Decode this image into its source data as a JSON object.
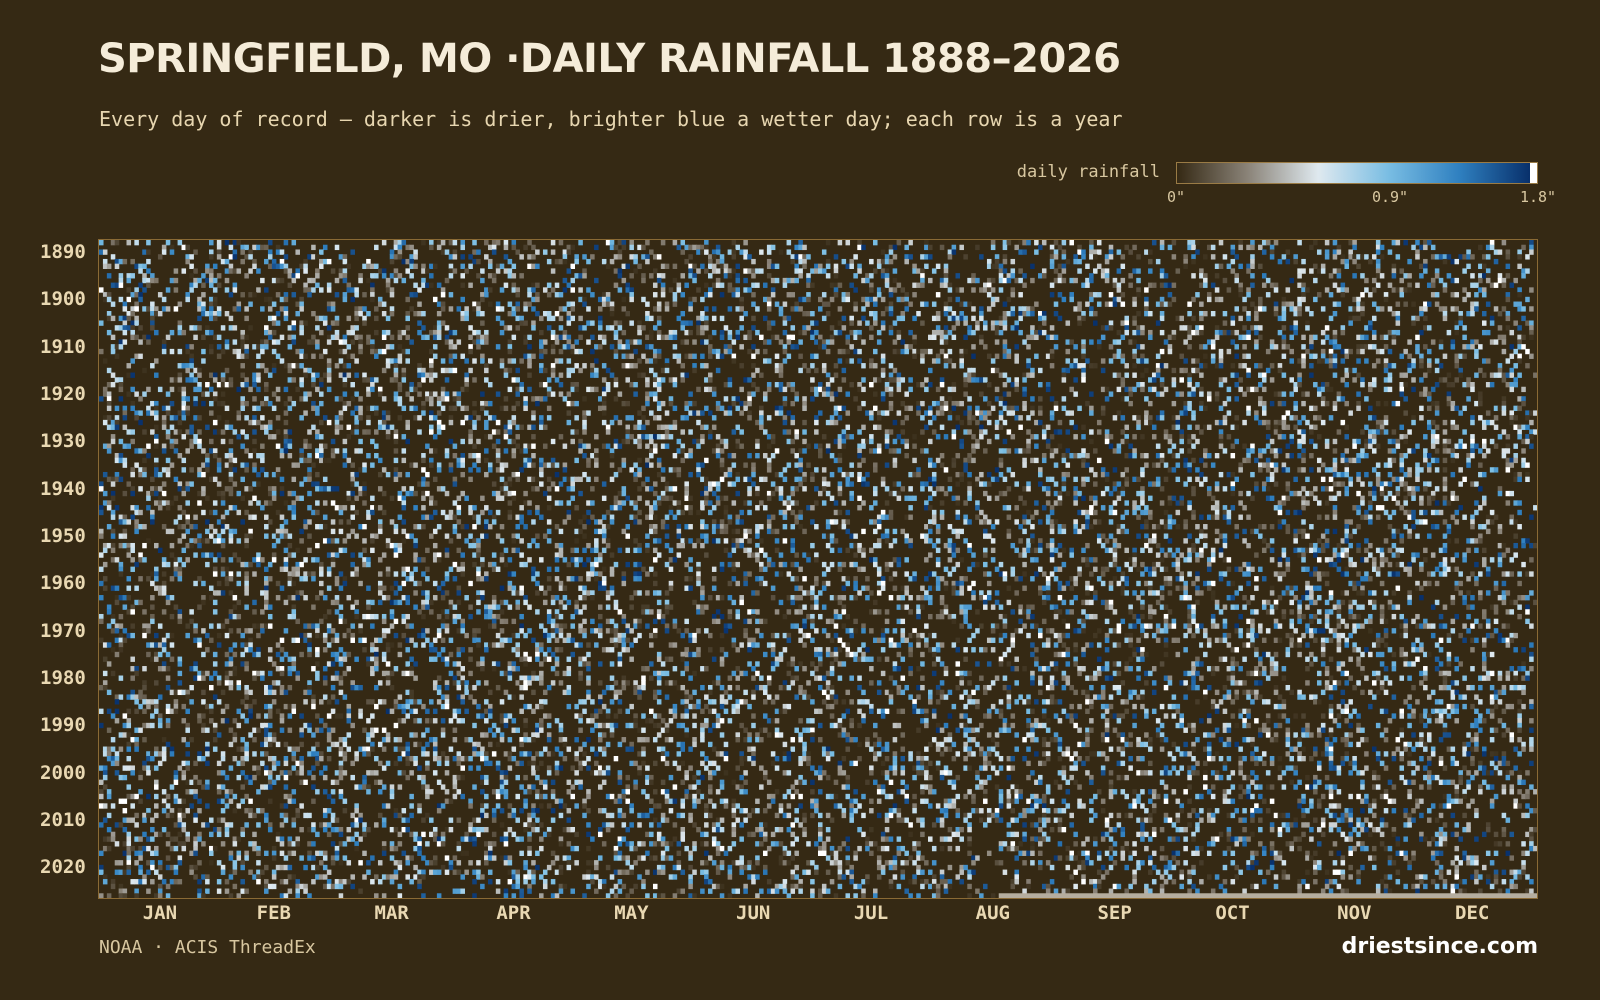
{
  "header": {
    "title": "SPRINGFIELD, MO ·DAILY RAINFALL 1888–2026",
    "subtitle": "Every day of record — darker is drier, brighter blue a wetter day; each row is a year"
  },
  "legend": {
    "label": "daily rainfall",
    "min_label": "0\"",
    "mid_label": "0.9\"",
    "max_label": "1.8\"",
    "min": 0,
    "mid": 0.9,
    "max": 1.8,
    "colors": [
      "#352914",
      "#8a8378",
      "#dfe9ef",
      "#79bde3",
      "#2f80c0",
      "#08306b"
    ],
    "overflow_color": "#ffffff"
  },
  "footer": {
    "source": "NOAA · ACIS ThreadEx",
    "brand": "driestsince.com"
  },
  "chart_data": {
    "type": "heatmap",
    "title": "SPRINGFIELD, MO ·DAILY RAINFALL 1888–2026",
    "subtitle": "Every day of record — darker is drier, brighter blue a wetter day; each row is a year",
    "x": "day of year",
    "y": "year",
    "year_range": [
      1888,
      2026
    ],
    "day_range": [
      1,
      366
    ],
    "value_unit": "inches",
    "value_range": [
      0,
      1.8
    ],
    "x_tick_labels": [
      "JAN",
      "FEB",
      "MAR",
      "APR",
      "MAY",
      "JUN",
      "JUL",
      "AUG",
      "SEP",
      "OCT",
      "NOV",
      "DEC"
    ],
    "x_tick_days": [
      16,
      45,
      75,
      106,
      136,
      167,
      197,
      228,
      259,
      289,
      320,
      350
    ],
    "y_ticks": [
      1890,
      1900,
      1910,
      1920,
      1930,
      1940,
      1950,
      1960,
      1970,
      1980,
      1990,
      2000,
      2010,
      2020
    ],
    "wet_day_fraction": 0.3,
    "missing_data": {
      "year": 2026,
      "from_day": 230,
      "to_day": 366,
      "color": "#b5ad9e"
    },
    "legend": {
      "label": "daily rainfall",
      "ticks": [
        "0\"",
        "0.9\"",
        "1.8\""
      ]
    },
    "source": "NOAA · ACIS ThreadEx"
  }
}
